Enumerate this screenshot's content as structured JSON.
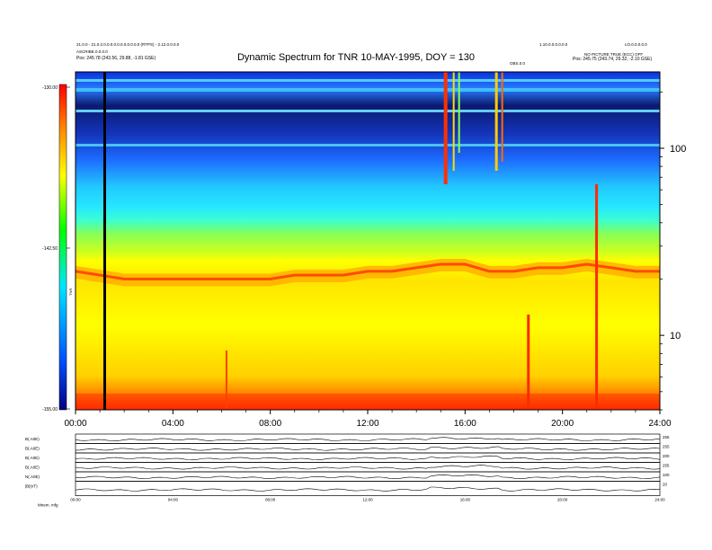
{
  "header": {
    "title": "Dynamic Spectrum for TNR 10-MAY-1995, DOY = 130",
    "meta_left": [
      "21.0.0 - 21.0.2.0.0.0.0.0.0.0.0.0.0.0 (RTPS) - 2.12.0.0.0.0",
      "ASCRIBE.0.0.0.0",
      "Pos:  245.78 (243.56, 29.88, -1.81 GSE)"
    ],
    "meta_right": [
      "1.10.0.0.0.0.0.0",
      "LO.0.0.0.0.0",
      "NO PICTURE TRUE (ECC) OFF",
      "Pos:  245.75 (243.74, 29.32, -2.10 GSE)"
    ],
    "marker_label": "OBS.0.0"
  },
  "chart_data": [
    {
      "type": "heatmap",
      "title": "Dynamic Spectrum for TNR 10-MAY-1995, DOY = 130",
      "x_ticks": [
        "00:00",
        "04:00",
        "08:00",
        "12:00",
        "16:00",
        "20:00",
        "24:00"
      ],
      "x_range_hours": [
        0,
        24
      ],
      "y_scale": "log",
      "y_ticks_right": [
        "100",
        "10"
      ],
      "y_range_khz": [
        4,
        256
      ],
      "y_unit": "kHz",
      "colorbar": {
        "label": "TNR",
        "ticks": [
          "-130.00",
          "-142.50",
          "-155.00"
        ],
        "range": [
          -155,
          -130
        ],
        "colors": [
          "#ff0000",
          "#ff6a00",
          "#ffff00",
          "#00ff00",
          "#00e0ff",
          "#0050ff",
          "#000080"
        ]
      },
      "background_band": {
        "plasma_line_khz_approx": [
          20,
          28
        ],
        "plasma_line_series_hours": [
          0,
          1,
          2,
          3,
          4,
          5,
          6,
          7,
          8,
          9,
          10,
          11,
          12,
          13,
          14,
          15,
          16,
          17,
          18,
          19,
          20,
          21,
          22,
          23,
          24
        ],
        "plasma_line_series_khz": [
          22,
          21,
          20,
          20,
          20,
          20,
          20,
          20,
          20,
          21,
          21,
          21,
          22,
          22,
          23,
          24,
          24,
          22,
          22,
          23,
          23,
          24,
          23,
          22,
          22
        ]
      },
      "burst_events_hours": [
        1.2,
        6.2,
        15.2,
        18.6,
        21.4
      ],
      "vertical_marker_hour": 1.2
    },
    {
      "type": "line",
      "panels": [
        {
          "label": "B(.A0E)",
          "right": "255"
        },
        {
          "label": "B(.A0E)",
          "right": "255"
        },
        {
          "label": "B(.A0E)",
          "right": "200"
        },
        {
          "label": "B(.A0E)",
          "right": "255"
        },
        {
          "label": "N(.A0E)",
          "right": "100"
        },
        {
          "label": "|B|(nT)",
          "right": "20"
        }
      ],
      "x_ticks_small": [
        "00:00",
        "04:00",
        "08:00",
        "12:00",
        "16:00",
        "20:00",
        "24:00"
      ],
      "footer_label": "Mnem. mfg"
    }
  ]
}
